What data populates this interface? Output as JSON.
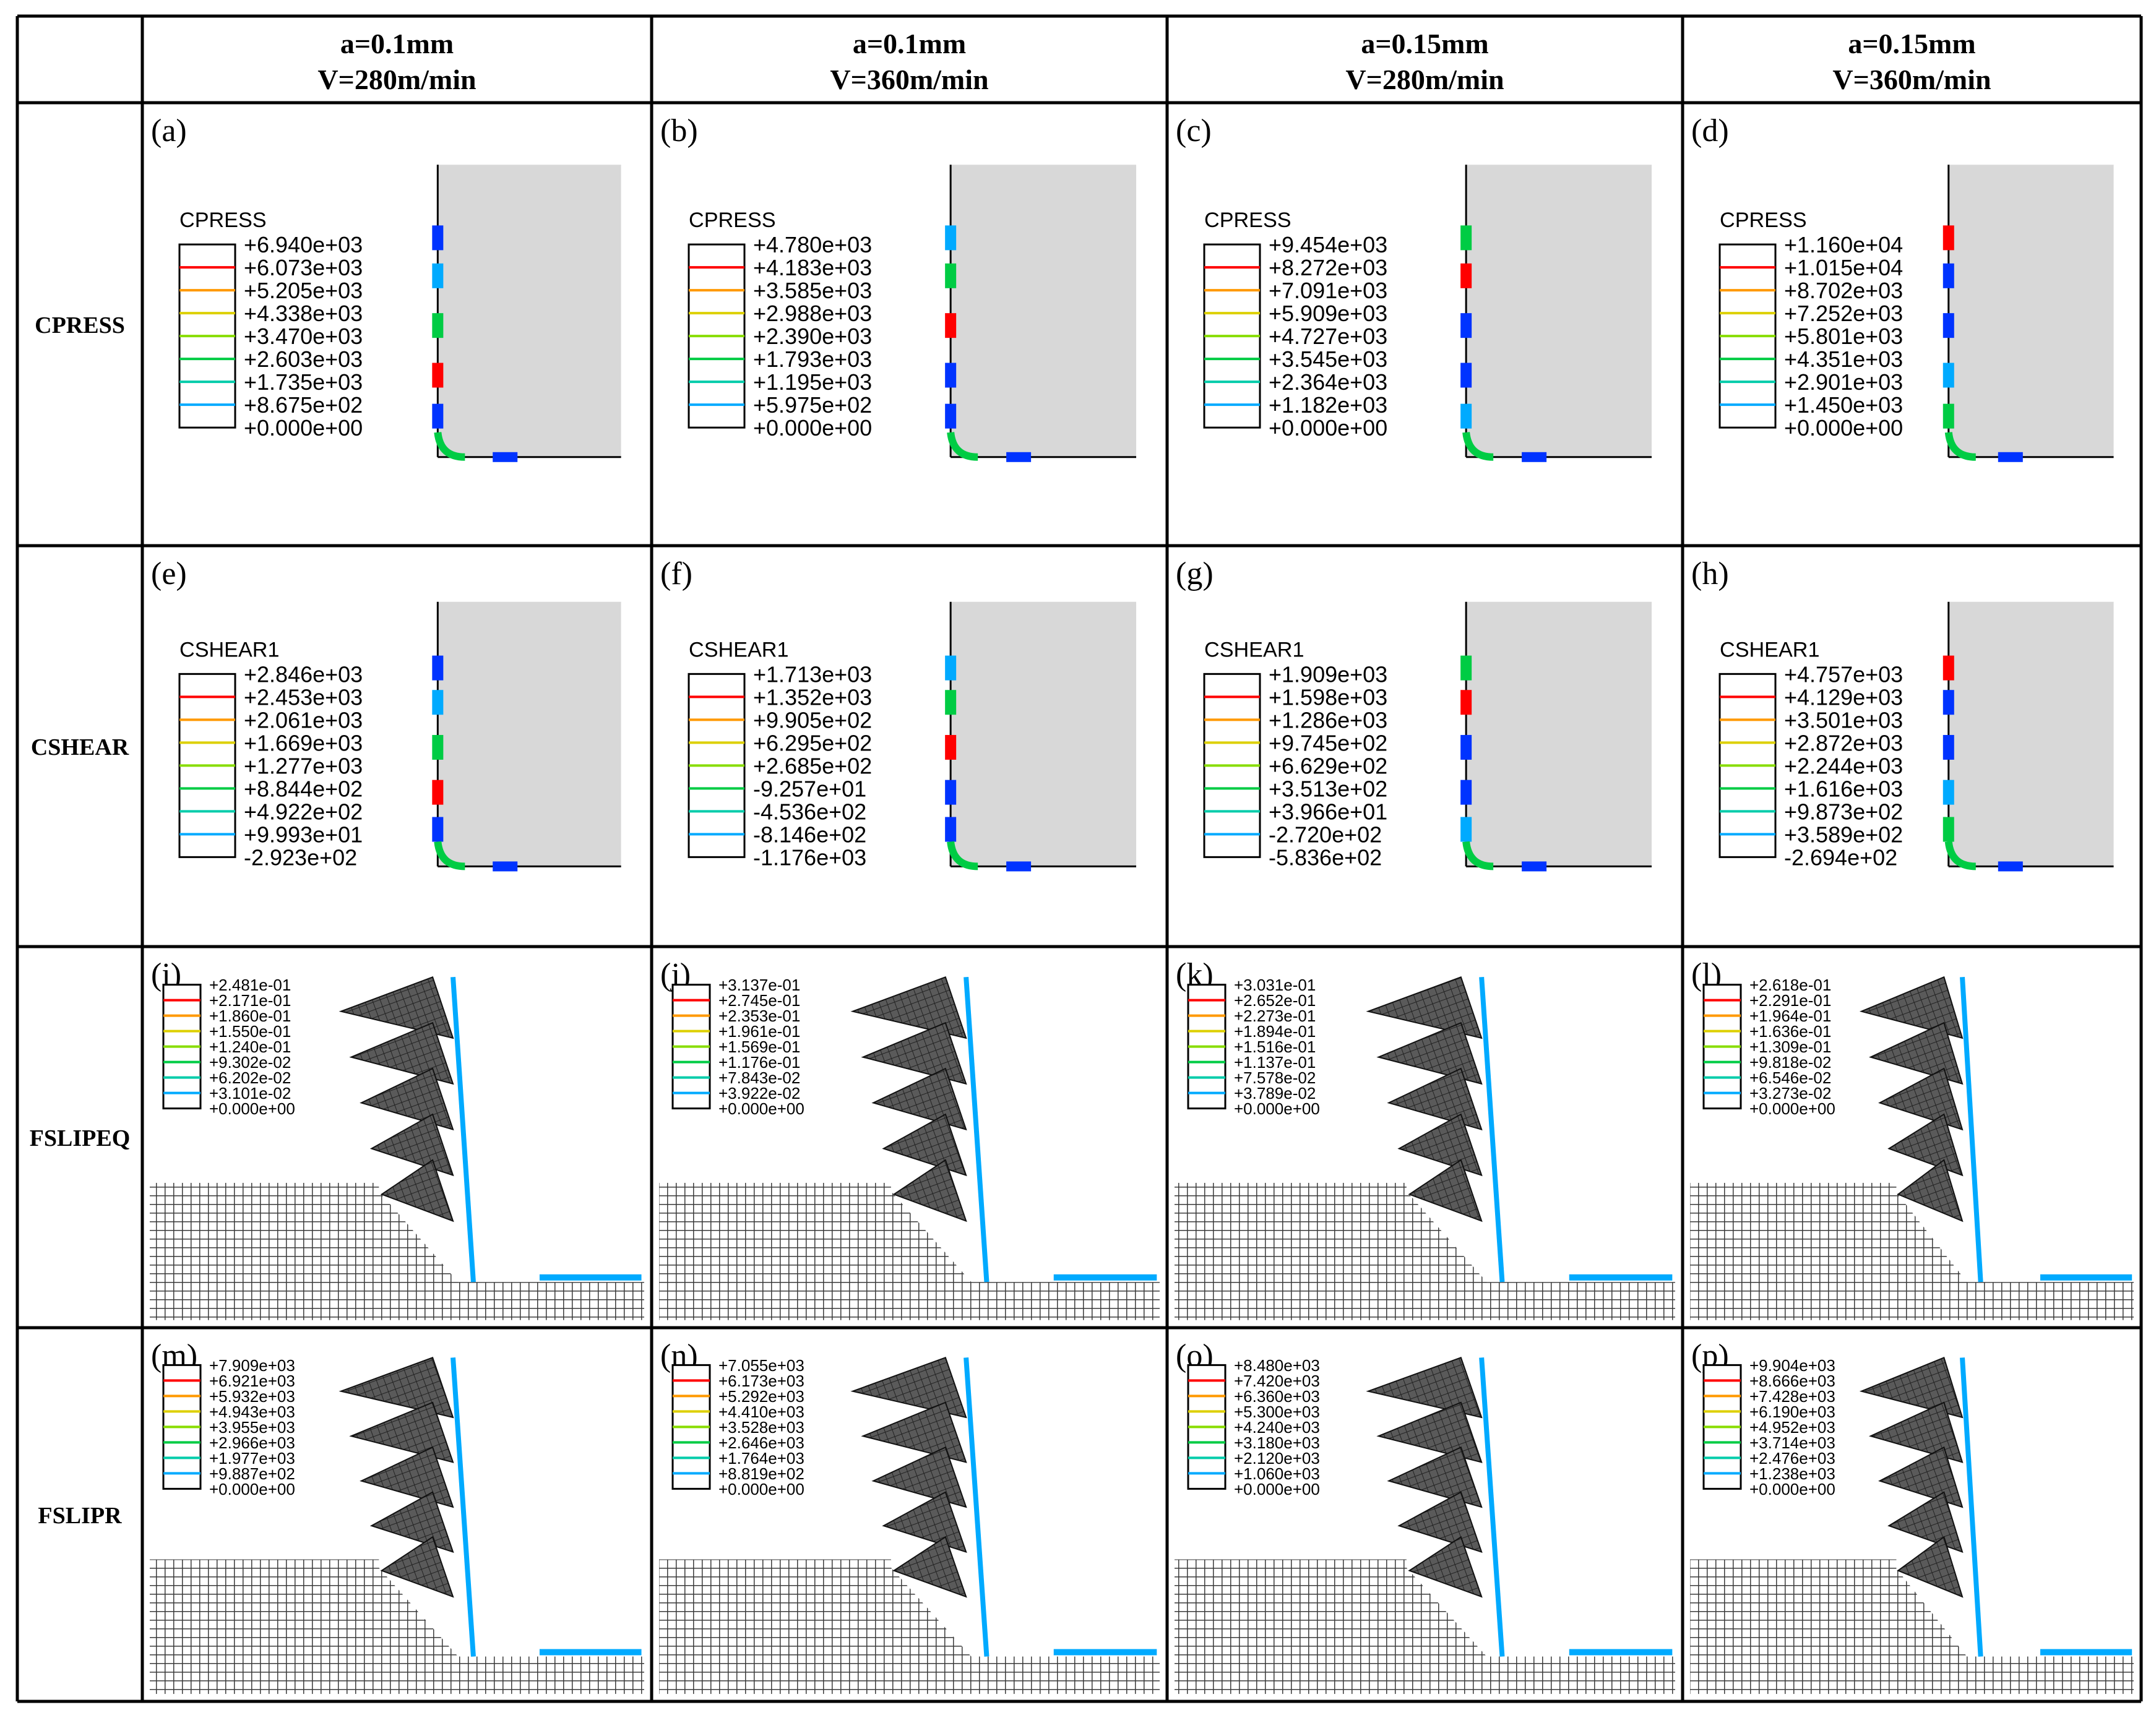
{
  "header": {
    "columns": [
      {
        "line1": "a=0.1mm",
        "line2": "V=280m/min"
      },
      {
        "line1": "a=0.1mm",
        "line2": "V=360m/min"
      },
      {
        "line1": "a=0.15mm",
        "line2": "V=280m/min"
      },
      {
        "line1": "a=0.15mm",
        "line2": "V=360m/min"
      }
    ]
  },
  "rows": [
    {
      "label": "CPRESS",
      "kind": "contact",
      "panels": [
        {
          "tag": "(a)",
          "title": "CPRESS",
          "values": [
            "+6.940e+03",
            "+6.073e+03",
            "+5.205e+03",
            "+4.338e+03",
            "+3.470e+03",
            "+2.603e+03",
            "+1.735e+03",
            "+8.675e+02",
            "+0.000e+00"
          ]
        },
        {
          "tag": "(b)",
          "title": "CPRESS",
          "values": [
            "+4.780e+03",
            "+4.183e+03",
            "+3.585e+03",
            "+2.988e+03",
            "+2.390e+03",
            "+1.793e+03",
            "+1.195e+03",
            "+5.975e+02",
            "+0.000e+00"
          ]
        },
        {
          "tag": "(c)",
          "title": "CPRESS",
          "values": [
            "+9.454e+03",
            "+8.272e+03",
            "+7.091e+03",
            "+5.909e+03",
            "+4.727e+03",
            "+3.545e+03",
            "+2.364e+03",
            "+1.182e+03",
            "+0.000e+00"
          ]
        },
        {
          "tag": "(d)",
          "title": "CPRESS",
          "values": [
            "+1.160e+04",
            "+1.015e+04",
            "+8.702e+03",
            "+7.252e+03",
            "+5.801e+03",
            "+4.351e+03",
            "+2.901e+03",
            "+1.450e+03",
            "+0.000e+00"
          ]
        }
      ]
    },
    {
      "label": "CSHEAR",
      "kind": "contact",
      "panels": [
        {
          "tag": "(e)",
          "title": "CSHEAR1",
          "values": [
            "+2.846e+03",
            "+2.453e+03",
            "+2.061e+03",
            "+1.669e+03",
            "+1.277e+03",
            "+8.844e+02",
            "+4.922e+02",
            "+9.993e+01",
            "-2.923e+02"
          ]
        },
        {
          "tag": "(f)",
          "title": "CSHEAR1",
          "values": [
            "+1.713e+03",
            "+1.352e+03",
            "+9.905e+02",
            "+6.295e+02",
            "+2.685e+02",
            "-9.257e+01",
            "-4.536e+02",
            "-8.146e+02",
            "-1.176e+03"
          ]
        },
        {
          "tag": "(g)",
          "title": "CSHEAR1",
          "values": [
            "+1.909e+03",
            "+1.598e+03",
            "+1.286e+03",
            "+9.745e+02",
            "+6.629e+02",
            "+3.513e+02",
            "+3.966e+01",
            "-2.720e+02",
            "-5.836e+02"
          ]
        },
        {
          "tag": "(h)",
          "title": "CSHEAR1",
          "values": [
            "+4.757e+03",
            "+4.129e+03",
            "+3.501e+03",
            "+2.872e+03",
            "+2.244e+03",
            "+1.616e+03",
            "+9.873e+02",
            "+3.589e+02",
            "-2.694e+02"
          ]
        }
      ]
    },
    {
      "label": "FSLIPEQ",
      "kind": "chip",
      "panels": [
        {
          "tag": "(i)",
          "title": "",
          "values": [
            "+2.481e-01",
            "+2.171e-01",
            "+1.860e-01",
            "+1.550e-01",
            "+1.240e-01",
            "+9.302e-02",
            "+6.202e-02",
            "+3.101e-02",
            "+0.000e+00"
          ]
        },
        {
          "tag": "(j)",
          "title": "",
          "values": [
            "+3.137e-01",
            "+2.745e-01",
            "+2.353e-01",
            "+1.961e-01",
            "+1.569e-01",
            "+1.176e-01",
            "+7.843e-02",
            "+3.922e-02",
            "+0.000e+00"
          ]
        },
        {
          "tag": "(k)",
          "title": "",
          "values": [
            "+3.031e-01",
            "+2.652e-01",
            "+2.273e-01",
            "+1.894e-01",
            "+1.516e-01",
            "+1.137e-01",
            "+7.578e-02",
            "+3.789e-02",
            "+0.000e+00"
          ]
        },
        {
          "tag": "(l)",
          "title": "",
          "values": [
            "+2.618e-01",
            "+2.291e-01",
            "+1.964e-01",
            "+1.636e-01",
            "+1.309e-01",
            "+9.818e-02",
            "+6.546e-02",
            "+3.273e-02",
            "+0.000e+00"
          ]
        }
      ]
    },
    {
      "label": "FSLIPR",
      "kind": "chip",
      "panels": [
        {
          "tag": "(m)",
          "title": "",
          "values": [
            "+7.909e+03",
            "+6.921e+03",
            "+5.932e+03",
            "+4.943e+03",
            "+3.955e+03",
            "+2.966e+03",
            "+1.977e+03",
            "+9.887e+02",
            "+0.000e+00"
          ]
        },
        {
          "tag": "(n)",
          "title": "",
          "values": [
            "+7.055e+03",
            "+6.173e+03",
            "+5.292e+03",
            "+4.410e+03",
            "+3.528e+03",
            "+2.646e+03",
            "+1.764e+03",
            "+8.819e+02",
            "+0.000e+00"
          ]
        },
        {
          "tag": "(o)",
          "title": "",
          "values": [
            "+8.480e+03",
            "+7.420e+03",
            "+6.360e+03",
            "+5.300e+03",
            "+4.240e+03",
            "+3.180e+03",
            "+2.120e+03",
            "+1.060e+03",
            "+0.000e+00"
          ]
        },
        {
          "tag": "(p)",
          "title": "",
          "values": [
            "+9.904e+03",
            "+8.666e+03",
            "+7.428e+03",
            "+6.190e+03",
            "+4.952e+03",
            "+3.714e+03",
            "+2.476e+03",
            "+1.238e+03",
            "+0.000e+00"
          ]
        }
      ]
    }
  ],
  "colors": {
    "legend": [
      "#ff0000",
      "#ff9900",
      "#ddd000",
      "#88dd00",
      "#00cc44",
      "#00ccaa",
      "#00aaff",
      "#0033ff"
    ],
    "workpiece": "#d8d8d8",
    "mesh": "#333333"
  }
}
